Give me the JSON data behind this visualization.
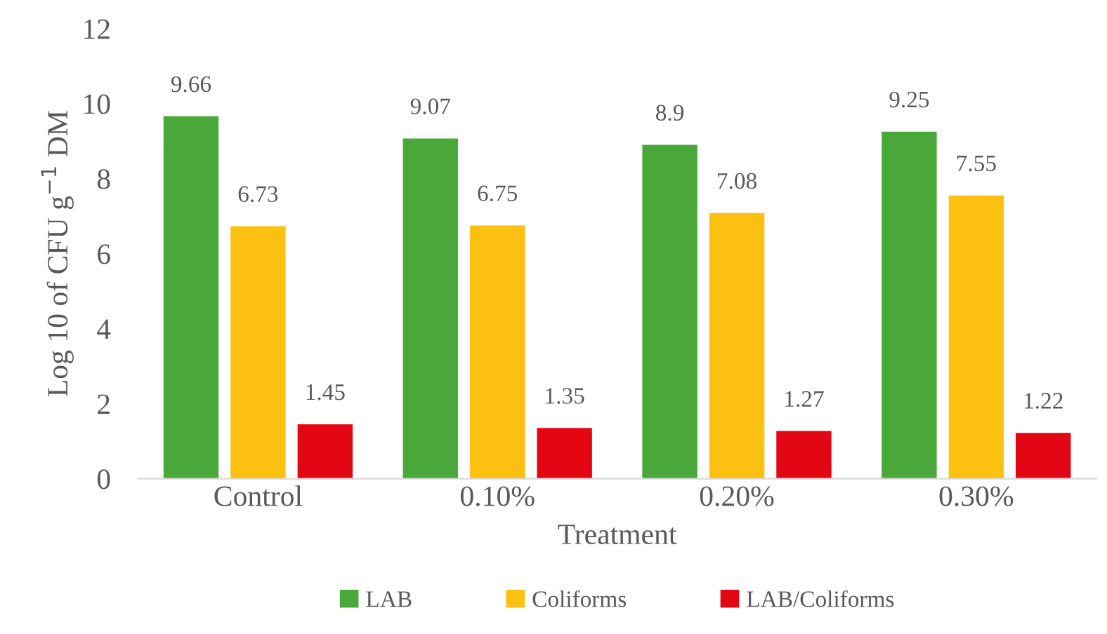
{
  "chart_data": {
    "type": "bar",
    "xlabel": "Treatment",
    "ylabel": "Log 10 of CFU g$^{−1}$ DM",
    "categories": [
      "Control",
      "0.10%",
      "0.20%",
      "0.30%"
    ],
    "series": [
      {
        "name": "LAB",
        "color": "#4aa83a",
        "values": [
          9.66,
          9.07,
          8.9,
          9.25
        ]
      },
      {
        "name": "Coliforms",
        "color": "#fcc010",
        "values": [
          6.73,
          6.75,
          7.08,
          7.55
        ]
      },
      {
        "name": "LAB/Coliforms",
        "color": "#e30613",
        "values": [
          1.45,
          1.35,
          1.27,
          1.22
        ]
      }
    ],
    "ylim": [
      0,
      12
    ],
    "yticks": [
      0,
      2,
      4,
      6,
      8,
      10,
      12
    ],
    "grid": false,
    "legend": "bottom",
    "data_labels": true
  }
}
